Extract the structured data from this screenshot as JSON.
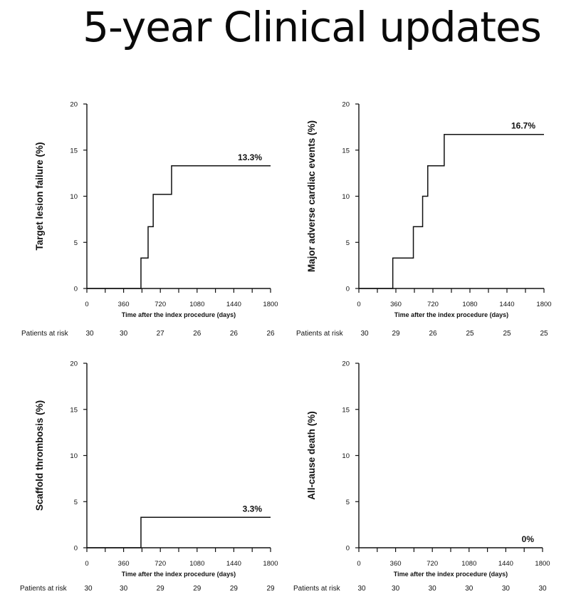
{
  "page_title": "5-year Clinical updates",
  "chart_data": [
    {
      "type": "line",
      "step": true,
      "title": "",
      "ylabel": "Target lesion failure (%)",
      "xlabel": "Time after the index procedure (days)",
      "xlim": [
        0,
        1800
      ],
      "ylim": [
        0,
        20
      ],
      "xticks": [
        0,
        360,
        720,
        1080,
        1440,
        1800
      ],
      "yticks": [
        0,
        5,
        10,
        15,
        20
      ],
      "series": [
        {
          "name": "Target lesion failure",
          "x": [
            0,
            530,
            600,
            650,
            830,
            1800
          ],
          "y": [
            0,
            3.3,
            6.7,
            10.2,
            13.3,
            13.3
          ]
        }
      ],
      "end_label": "13.3%",
      "risk_label": "Patients at risk",
      "risk_values": [
        "30",
        "30",
        "27",
        "26",
        "26",
        "26"
      ]
    },
    {
      "type": "line",
      "step": true,
      "title": "",
      "ylabel": "Major adverse cardiac events (%)",
      "xlabel": "Time after the index procedure (days)",
      "xlim": [
        0,
        1800
      ],
      "ylim": [
        0,
        20
      ],
      "xticks": [
        0,
        360,
        720,
        1080,
        1440,
        1800
      ],
      "yticks": [
        0,
        5,
        10,
        15,
        20
      ],
      "series": [
        {
          "name": "Major adverse cardiac events",
          "x": [
            0,
            330,
            530,
            620,
            670,
            830,
            1800
          ],
          "y": [
            0,
            3.3,
            6.7,
            10.0,
            13.3,
            16.7,
            16.7
          ]
        }
      ],
      "end_label": "16.7%",
      "risk_label": "Patients at risk",
      "risk_values": [
        "30",
        "29",
        "26",
        "25",
        "25",
        "25"
      ]
    },
    {
      "type": "line",
      "step": true,
      "title": "",
      "ylabel": "Scaffold thrombosis (%)",
      "xlabel": "Time after the index procedure (days)",
      "xlim": [
        0,
        1800
      ],
      "ylim": [
        0,
        20
      ],
      "xticks": [
        0,
        360,
        720,
        1080,
        1440,
        1800
      ],
      "yticks": [
        0,
        5,
        10,
        15,
        20
      ],
      "series": [
        {
          "name": "Scaffold thrombosis",
          "x": [
            0,
            530,
            1800
          ],
          "y": [
            0,
            3.3,
            3.3
          ]
        }
      ],
      "end_label": "3.3%",
      "risk_label": "Patients at risk",
      "risk_values": [
        "30",
        "30",
        "29",
        "29",
        "29",
        "29"
      ]
    },
    {
      "type": "line",
      "step": true,
      "title": "",
      "ylabel": "All-cause death (%)",
      "xlabel": "Time after the index procedure (days)",
      "xlim": [
        0,
        1800
      ],
      "ylim": [
        0,
        20
      ],
      "xticks": [
        0,
        360,
        720,
        1080,
        1440,
        1800
      ],
      "yticks": [
        0,
        5,
        10,
        15,
        20
      ],
      "series": [
        {
          "name": "All-cause death",
          "x": [
            0,
            1800
          ],
          "y": [
            0,
            0
          ]
        }
      ],
      "end_label": "0%",
      "risk_label": "Patients at risk",
      "risk_values": [
        "30",
        "30",
        "30",
        "30",
        "30",
        "30"
      ]
    }
  ]
}
